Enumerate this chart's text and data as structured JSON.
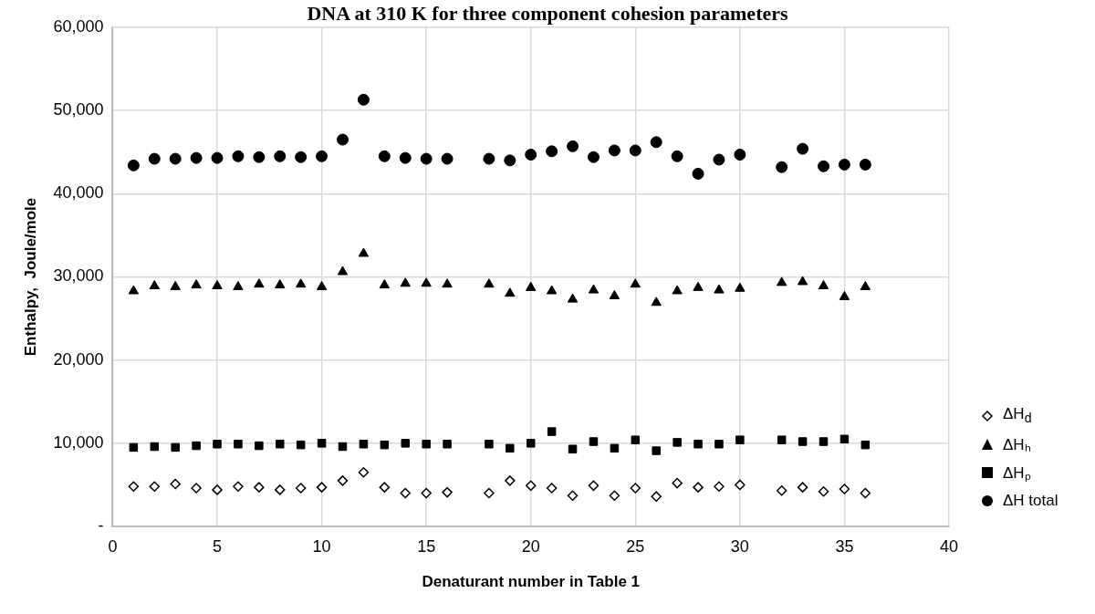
{
  "chart_data": {
    "type": "scatter",
    "title": "DNA at 310 K for three component cohesion parameters",
    "xlabel": "Denaturant number in Table 1",
    "ylabel": "Enthalpy,  Joule/mole",
    "x": [
      1,
      2,
      3,
      4,
      5,
      6,
      7,
      8,
      9,
      10,
      11,
      12,
      13,
      14,
      15,
      16,
      18,
      19,
      20,
      21,
      22,
      23,
      24,
      25,
      26,
      27,
      28,
      29,
      30,
      32,
      33,
      34,
      35,
      36
    ],
    "series": [
      {
        "name": "ΔH$_{d}$",
        "color": "#000000",
        "marker": "diamond",
        "values": [
          4800,
          4800,
          5100,
          4600,
          4400,
          4800,
          4700,
          4400,
          4600,
          4700,
          5500,
          6500,
          4700,
          4000,
          4000,
          4100,
          4000,
          5500,
          4900,
          4600,
          3700,
          4900,
          3700,
          4600,
          3600,
          5200,
          4700,
          4800,
          5000,
          4300,
          4700,
          4200,
          4500,
          4000
        ]
      },
      {
        "name": "ΔHₕ",
        "color": "#000000",
        "marker": "triangle",
        "values": [
          28300,
          28900,
          28800,
          29000,
          28900,
          28800,
          29100,
          29000,
          29100,
          28800,
          30600,
          32800,
          29000,
          29200,
          29200,
          29100,
          29100,
          28000,
          28700,
          28300,
          27300,
          28400,
          27700,
          29100,
          26900,
          28300,
          28700,
          28400,
          28600,
          29300,
          29400,
          28900,
          27600,
          28800
        ]
      },
      {
        "name": "ΔHₚ",
        "color": "#000000",
        "marker": "square",
        "values": [
          9500,
          9600,
          9500,
          9700,
          9900,
          9900,
          9700,
          9900,
          9800,
          10000,
          9600,
          9900,
          9800,
          10000,
          9900,
          9900,
          9900,
          9400,
          10000,
          11400,
          9300,
          10200,
          9400,
          10400,
          9100,
          10100,
          9900,
          9900,
          10400,
          10400,
          10200,
          10200,
          10500,
          9800
        ]
      },
      {
        "name": "ΔH total",
        "color": "#000000",
        "marker": "circle",
        "values": [
          43400,
          44200,
          44200,
          44300,
          44300,
          44500,
          44400,
          44500,
          44400,
          44500,
          46500,
          51300,
          44500,
          44300,
          44200,
          44200,
          44200,
          44000,
          44700,
          45100,
          45700,
          44400,
          45200,
          45200,
          46200,
          44500,
          42400,
          44100,
          44700,
          43200,
          45400,
          43300,
          43500,
          43500
        ]
      }
    ],
    "xlim": [
      0,
      40
    ],
    "xticks": [
      0,
      5,
      10,
      15,
      20,
      25,
      30,
      35,
      40
    ],
    "ylim": [
      0,
      60000
    ],
    "yticks": [
      {
        "value": 0,
        "label": "-"
      },
      {
        "value": 10000,
        "label": "10,000"
      },
      {
        "value": 20000,
        "label": "20,000"
      },
      {
        "value": 30000,
        "label": "30,000"
      },
      {
        "value": 40000,
        "label": "40,000"
      },
      {
        "value": 50000,
        "label": "50,000"
      },
      {
        "value": 60000,
        "label": "60,000"
      }
    ],
    "grid": true,
    "legend": "right"
  }
}
